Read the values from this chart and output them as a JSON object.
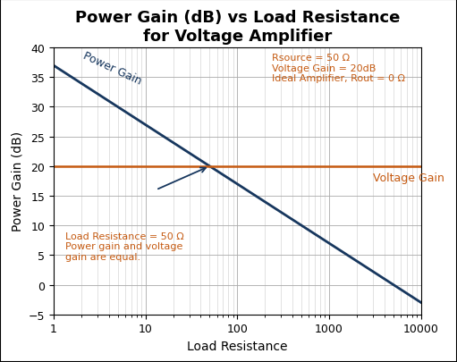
{
  "title_line1": "Power Gain (dB) vs Load Resistance",
  "title_line2": "for Voltage Amplifier",
  "xlabel": "Load Resistance",
  "ylabel": "Power Gain (dB)",
  "xlim_log": [
    1,
    10000
  ],
  "ylim": [
    -5,
    40
  ],
  "yticks": [
    -5,
    0,
    5,
    10,
    15,
    20,
    25,
    30,
    35,
    40
  ],
  "voltage_gain_dB": 20,
  "Rsource": 50,
  "power_gain_color": "#17375E",
  "voltage_gain_color": "#C55A11",
  "info_text_color": "#C55A11",
  "annotation_cross_color": "#C55A11",
  "background_color": "#FFFFFF",
  "grid_color": "#AAAAAA",
  "grid_minor_color": "#CCCCCC",
  "annotation_info": "Rsource = 50 Ω\nVoltage Gain = 20dB\nIdeal Amplifier, Rout = 0 Ω",
  "annotation_cross": "Load Resistance = 50 Ω\nPower gain and voltage\ngain are equal.",
  "power_gain_label": "Power Gain",
  "voltage_gain_label": "Voltage Gain",
  "title_fontsize": 13,
  "axis_label_fontsize": 10,
  "tick_fontsize": 9,
  "annotation_fontsize": 8,
  "power_gain_label_fontsize": 9,
  "voltage_gain_label_fontsize": 9,
  "info_fontsize": 8
}
